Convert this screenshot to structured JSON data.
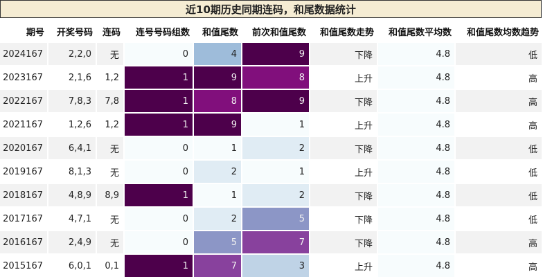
{
  "title": "近10期历史同期连码，和尾数据统计",
  "headers": [
    "期号",
    "开奖号码",
    "连码",
    "连号号码组数",
    "和值尾数",
    "前次和值尾数",
    "和值尾数走势",
    "和值尾数平均数",
    "和值尾数均数趋势"
  ],
  "rows": [
    {
      "period": "2024167",
      "numbers": "2,2,0",
      "lian": "无",
      "groups": "0",
      "tail": "4",
      "prev_tail": "9",
      "trend": "下降",
      "avg": "4.8",
      "avg_trend": "低"
    },
    {
      "period": "2023167",
      "numbers": "2,1,6",
      "lian": "1,2",
      "groups": "1",
      "tail": "9",
      "prev_tail": "8",
      "trend": "上升",
      "avg": "4.8",
      "avg_trend": "高"
    },
    {
      "period": "2022167",
      "numbers": "7,8,3",
      "lian": "7,8",
      "groups": "1",
      "tail": "8",
      "prev_tail": "9",
      "trend": "下降",
      "avg": "4.8",
      "avg_trend": "高"
    },
    {
      "period": "2021167",
      "numbers": "1,2,6",
      "lian": "1,2",
      "groups": "1",
      "tail": "9",
      "prev_tail": "1",
      "trend": "上升",
      "avg": "4.8",
      "avg_trend": "高"
    },
    {
      "period": "2020167",
      "numbers": "6,4,1",
      "lian": "无",
      "groups": "0",
      "tail": "1",
      "prev_tail": "2",
      "trend": "下降",
      "avg": "4.8",
      "avg_trend": "低"
    },
    {
      "period": "2019167",
      "numbers": "8,1,3",
      "lian": "无",
      "groups": "0",
      "tail": "2",
      "prev_tail": "1",
      "trend": "上升",
      "avg": "4.8",
      "avg_trend": "低"
    },
    {
      "period": "2018167",
      "numbers": "4,8,9",
      "lian": "8,9",
      "groups": "1",
      "tail": "1",
      "prev_tail": "2",
      "trend": "下降",
      "avg": "4.8",
      "avg_trend": "低"
    },
    {
      "period": "2017167",
      "numbers": "4,7,1",
      "lian": "无",
      "groups": "0",
      "tail": "2",
      "prev_tail": "5",
      "trend": "下降",
      "avg": "4.8",
      "avg_trend": "低"
    },
    {
      "period": "2016167",
      "numbers": "2,4,9",
      "lian": "无",
      "groups": "0",
      "tail": "5",
      "prev_tail": "7",
      "trend": "下降",
      "avg": "4.8",
      "avg_trend": "高"
    },
    {
      "period": "2015167",
      "numbers": "6,0,1",
      "lian": "0,1",
      "groups": "1",
      "tail": "7",
      "prev_tail": "3",
      "trend": "上升",
      "avg": "4.8",
      "avg_trend": "高"
    }
  ],
  "colors": {
    "groups": [
      "#f7fcfd",
      "#f7fcfd",
      "#f7fcfd",
      "#f7fcfd",
      "#f7fcfd",
      "#f7fcfd",
      "#f7fcfd",
      "#f7fcfd",
      "#f7fcfd",
      "#f7fcfd"
    ],
    "tail": [
      "#9ebcda",
      "#4d004b",
      "#810f7c",
      "#4d004b",
      "#f7fcfd",
      "#e0ecf4",
      "#f7fcfd",
      "#e0ecf4",
      "#8c96c6",
      "#88419d"
    ],
    "prev_tail": [
      "#4d004b",
      "#810f7c",
      "#4d004b",
      "#f7fcfd",
      "#e0ecf4",
      "#f7fcfd",
      "#e0ecf4",
      "#8c96c6",
      "#88419d",
      "#bfd3e6"
    ],
    "avg": "#f7fcfd"
  }
}
